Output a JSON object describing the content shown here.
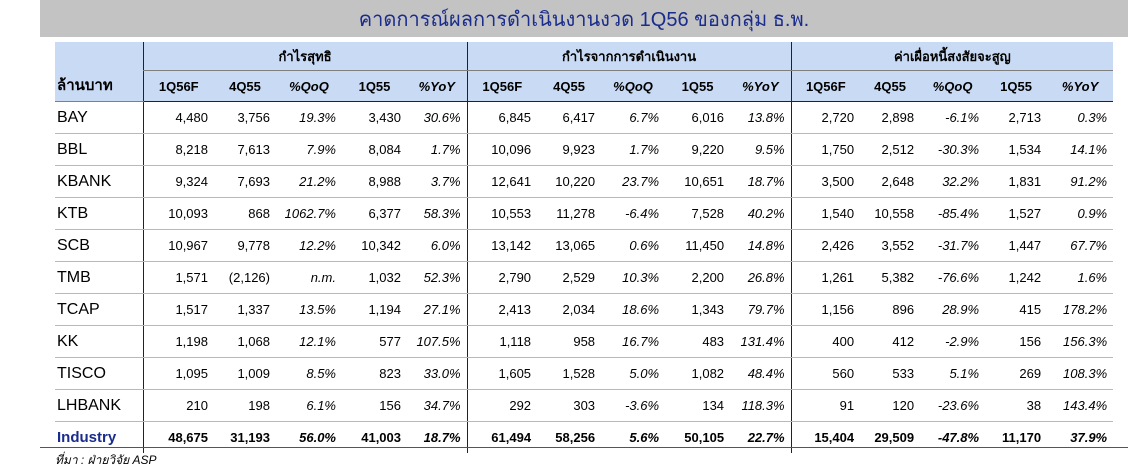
{
  "title": "คาดการณ์ผลการดำเนินงานงวด 1Q56 ของกลุ่ม ธ.พ.",
  "corner_label": "ล้านบาท",
  "groups": [
    "กำไรสุทธิ",
    "กำไรจากการดำเนินงาน",
    "ค่าเผื่อหนี้สงสัยจะสูญ"
  ],
  "columns": [
    "1Q56F",
    "4Q55",
    "%QoQ",
    "1Q55",
    "%YoY"
  ],
  "rows": [
    {
      "bank": "BAY",
      "values": [
        "4,480",
        "3,756",
        "19.3%",
        "3,430",
        "30.6%",
        "6,845",
        "6,417",
        "6.7%",
        "6,016",
        "13.8%",
        "2,720",
        "2,898",
        "-6.1%",
        "2,713",
        "0.3%"
      ]
    },
    {
      "bank": "BBL",
      "values": [
        "8,218",
        "7,613",
        "7.9%",
        "8,084",
        "1.7%",
        "10,096",
        "9,923",
        "1.7%",
        "9,220",
        "9.5%",
        "1,750",
        "2,512",
        "-30.3%",
        "1,534",
        "14.1%"
      ]
    },
    {
      "bank": "KBANK",
      "values": [
        "9,324",
        "7,693",
        "21.2%",
        "8,988",
        "3.7%",
        "12,641",
        "10,220",
        "23.7%",
        "10,651",
        "18.7%",
        "3,500",
        "2,648",
        "32.2%",
        "1,831",
        "91.2%"
      ]
    },
    {
      "bank": "KTB",
      "values": [
        "10,093",
        "868",
        "1062.7%",
        "6,377",
        "58.3%",
        "10,553",
        "11,278",
        "-6.4%",
        "7,528",
        "40.2%",
        "1,540",
        "10,558",
        "-85.4%",
        "1,527",
        "0.9%"
      ]
    },
    {
      "bank": "SCB",
      "values": [
        "10,967",
        "9,778",
        "12.2%",
        "10,342",
        "6.0%",
        "13,142",
        "13,065",
        "0.6%",
        "11,450",
        "14.8%",
        "2,426",
        "3,552",
        "-31.7%",
        "1,447",
        "67.7%"
      ]
    },
    {
      "bank": "TMB",
      "values": [
        "1,571",
        "(2,126)",
        "n.m.",
        "1,032",
        "52.3%",
        "2,790",
        "2,529",
        "10.3%",
        "2,200",
        "26.8%",
        "1,261",
        "5,382",
        "-76.6%",
        "1,242",
        "1.6%"
      ]
    },
    {
      "bank": "TCAP",
      "values": [
        "1,517",
        "1,337",
        "13.5%",
        "1,194",
        "27.1%",
        "2,413",
        "2,034",
        "18.6%",
        "1,343",
        "79.7%",
        "1,156",
        "896",
        "28.9%",
        "415",
        "178.2%"
      ]
    },
    {
      "bank": "KK",
      "values": [
        "1,198",
        "1,068",
        "12.1%",
        "577",
        "107.5%",
        "1,118",
        "958",
        "16.7%",
        "483",
        "131.4%",
        "400",
        "412",
        "-2.9%",
        "156",
        "156.3%"
      ]
    },
    {
      "bank": "TISCO",
      "values": [
        "1,095",
        "1,009",
        "8.5%",
        "823",
        "33.0%",
        "1,605",
        "1,528",
        "5.0%",
        "1,082",
        "48.4%",
        "560",
        "533",
        "5.1%",
        "269",
        "108.3%"
      ]
    },
    {
      "bank": "LHBANK",
      "values": [
        "210",
        "198",
        "6.1%",
        "156",
        "34.7%",
        "292",
        "303",
        "-3.6%",
        "134",
        "118.3%",
        "91",
        "120",
        "-23.6%",
        "38",
        "143.4%"
      ]
    }
  ],
  "industry": {
    "bank": "Industry",
    "values": [
      "48,675",
      "31,193",
      "56.0%",
      "41,003",
      "18.7%",
      "61,494",
      "58,256",
      "5.6%",
      "50,105",
      "22.7%",
      "15,404",
      "29,509",
      "-47.8%",
      "11,170",
      "37.9%"
    ]
  },
  "source": "ที่มา : ฝ่ายวิจัย ASP"
}
